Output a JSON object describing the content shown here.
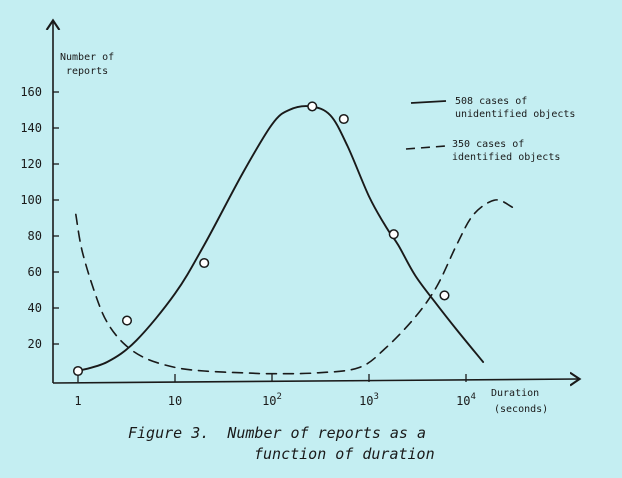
{
  "chart_data": {
    "type": "line",
    "x_scale": "log",
    "xlabel": [
      "Duration",
      "(seconds)"
    ],
    "ylabel": [
      "Number of",
      "reports"
    ],
    "xlim": [
      1,
      60000
    ],
    "ylim": [
      0,
      170
    ],
    "x_ticks": [
      {
        "value": 1,
        "base": "1",
        "exp": ""
      },
      {
        "value": 10,
        "base": "10",
        "exp": ""
      },
      {
        "value": 100,
        "base": "10",
        "exp": "2"
      },
      {
        "value": 1000,
        "base": "10",
        "exp": "3"
      },
      {
        "value": 10000,
        "base": "10",
        "exp": "4"
      }
    ],
    "y_ticks": [
      20,
      40,
      60,
      80,
      100,
      120,
      140,
      160
    ],
    "grid": false,
    "legend_position": "top-right",
    "series": [
      {
        "name": [
          "508 cases of",
          "unidentified objects"
        ],
        "style": "solid",
        "x": [
          1,
          2,
          4,
          10,
          20,
          50,
          100,
          150,
          250,
          400,
          600,
          1000,
          1500,
          2000,
          3000,
          5000,
          8000,
          15000
        ],
        "y": [
          5,
          10,
          22,
          48,
          75,
          115,
          142,
          150,
          152,
          147,
          130,
          102,
          85,
          75,
          58,
          42,
          28,
          10
        ]
      },
      {
        "name": [
          "350 cases of",
          "identified objects"
        ],
        "style": "dashed",
        "x": [
          0.95,
          1.1,
          1.5,
          2,
          3,
          5,
          10,
          20,
          50,
          100,
          300,
          800,
          1500,
          3000,
          5000,
          8000,
          12000,
          20000,
          30000
        ],
        "y": [
          92,
          72,
          48,
          32,
          20,
          12,
          7,
          5,
          4,
          3.5,
          4,
          7,
          18,
          35,
          52,
          75,
          92,
          100,
          96
        ]
      }
    ],
    "points": [
      {
        "x": 1,
        "y": 5
      },
      {
        "x": 3.2,
        "y": 33
      },
      {
        "x": 20,
        "y": 65
      },
      {
        "x": 260,
        "y": 152
      },
      {
        "x": 550,
        "y": 145
      },
      {
        "x": 1800,
        "y": 81
      },
      {
        "x": 6000,
        "y": 47
      }
    ]
  },
  "caption": [
    "Figure 3.  Number of reports as a",
    "function of duration"
  ]
}
